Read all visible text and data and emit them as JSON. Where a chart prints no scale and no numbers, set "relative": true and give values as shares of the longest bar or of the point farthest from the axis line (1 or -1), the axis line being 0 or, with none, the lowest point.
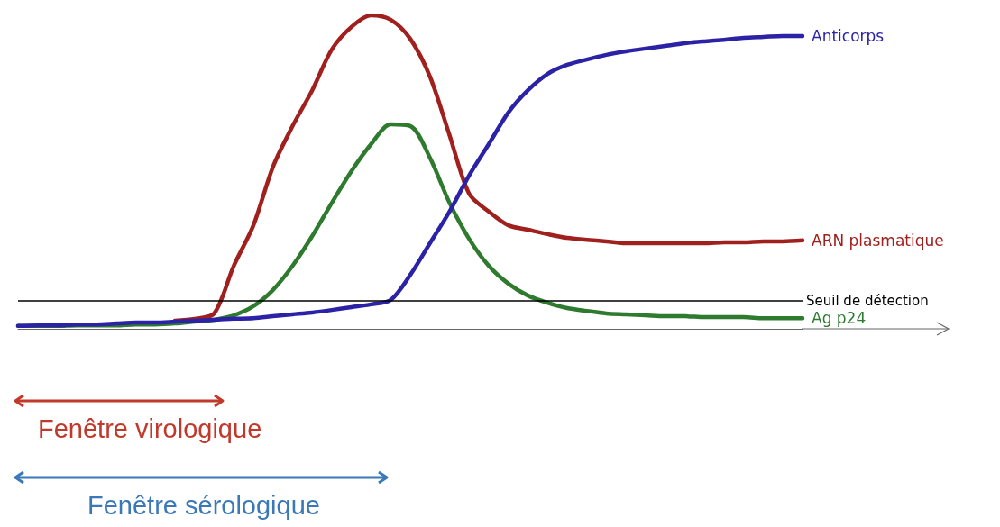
{
  "chart_data": {
    "type": "line",
    "relative": true,
    "categories": [
      null,
      null,
      null,
      null,
      null,
      null,
      null,
      null,
      null,
      null,
      null,
      null,
      null,
      null,
      null,
      null,
      null,
      null,
      null,
      null,
      null,
      null,
      null,
      null,
      null,
      null,
      null,
      null,
      null,
      null,
      null,
      null,
      null,
      null,
      null,
      null,
      null,
      null,
      null,
      null,
      null
    ],
    "series": [
      {
        "name": "ARN plasmatique",
        "color": "#a0201e",
        "values": [
          null,
          null,
          null,
          null,
          null,
          null,
          null,
          null,
          0.026,
          0.032,
          0.049,
          0.201,
          0.33,
          0.517,
          0.647,
          0.761,
          0.891,
          0.963,
          1,
          0.986,
          0.925,
          0.805,
          0.618,
          0.431,
          0.374,
          0.33,
          0.316,
          0.302,
          0.29,
          0.284,
          0.279,
          0.273,
          0.273,
          0.273,
          0.273,
          0.273,
          0.276,
          0.276,
          0.279,
          0.279,
          0.282
        ]
      },
      {
        "name": "Ag p24",
        "color": "#2e7a2e",
        "values": [
          0.009,
          0.009,
          0.009,
          0.011,
          0.011,
          0.011,
          0.014,
          0.014,
          0.017,
          0.023,
          0.029,
          0.043,
          0.072,
          0.124,
          0.201,
          0.296,
          0.402,
          0.503,
          0.589,
          0.652,
          0.647,
          0.546,
          0.402,
          0.287,
          0.201,
          0.144,
          0.106,
          0.083,
          0.066,
          0.057,
          0.049,
          0.046,
          0.043,
          0.04,
          0.04,
          0.037,
          0.037,
          0.037,
          0.034,
          0.034,
          0.034
        ]
      },
      {
        "name": "Anticorps",
        "color": "#2b22a6",
        "values": [
          0.009,
          0.011,
          0.011,
          0.014,
          0.014,
          0.017,
          0.02,
          0.02,
          0.023,
          0.026,
          0.029,
          0.032,
          0.034,
          0.04,
          0.046,
          0.052,
          0.06,
          0.069,
          0.078,
          0.092,
          0.172,
          0.273,
          0.374,
          0.489,
          0.589,
          0.69,
          0.761,
          0.813,
          0.842,
          0.859,
          0.874,
          0.885,
          0.894,
          0.902,
          0.911,
          0.917,
          0.922,
          0.928,
          0.931,
          0.934,
          0.934
        ]
      }
    ],
    "ref_lines": [
      {
        "axis": "y",
        "value": 0.089,
        "label": "Seuil de détection",
        "color": "#000000"
      }
    ],
    "annotations": [
      "Fenêtre virologique",
      "Fenêtre sérologique"
    ],
    "grid": false,
    "legend": false,
    "marker": "none",
    "line_style": "solid"
  }
}
